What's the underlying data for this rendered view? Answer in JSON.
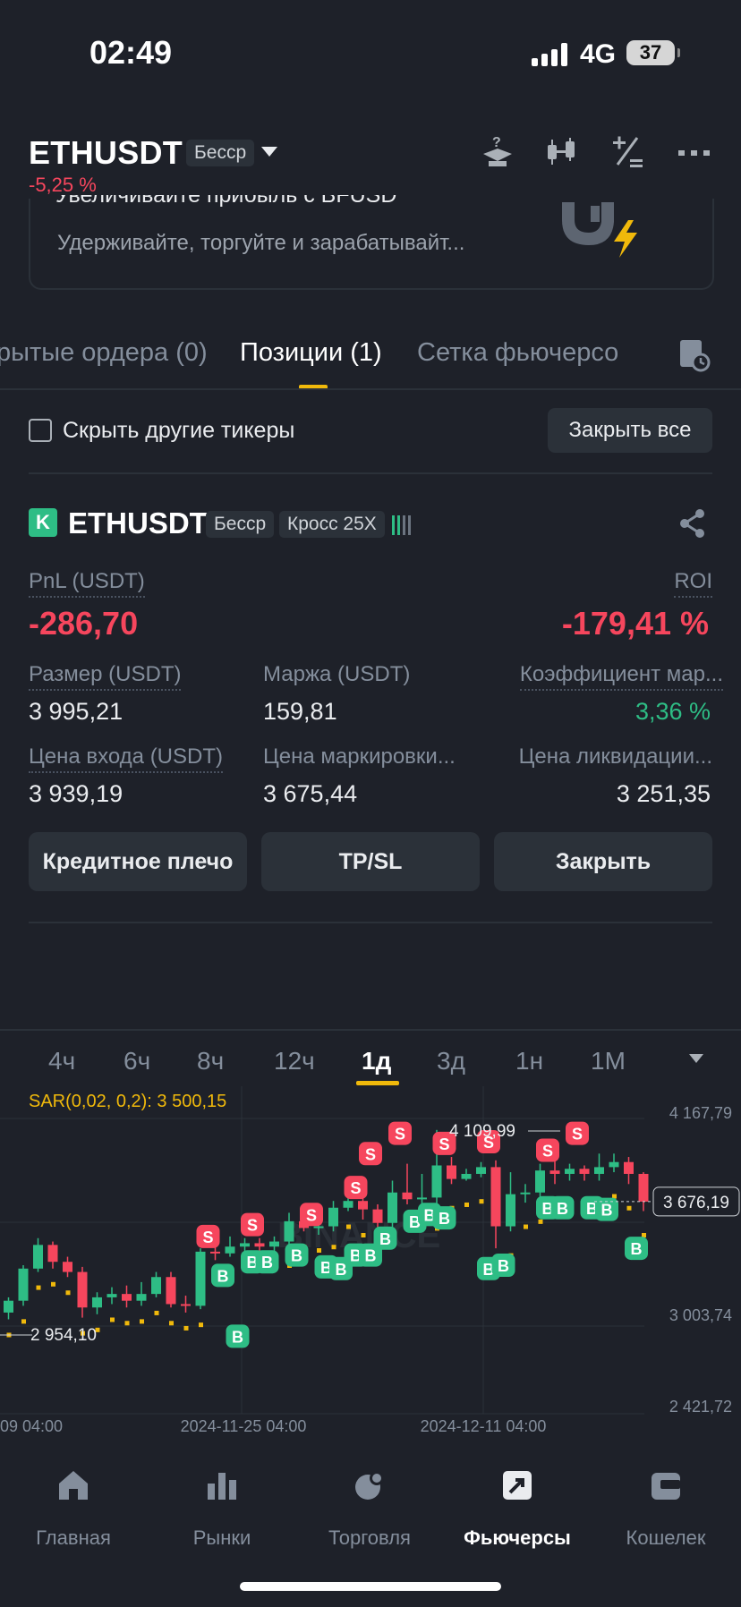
{
  "status": {
    "time": "02:49",
    "network": "4G",
    "battery": "37"
  },
  "header": {
    "symbol": "ETHUSDT",
    "contract_tag": "Бесср",
    "change": "-5,25 %"
  },
  "banner": {
    "title": "Увеличивайте прибыль с BFUSD",
    "subtitle": "Удерживайте, торгуйте и зарабатывайт..."
  },
  "tabs": [
    {
      "label": "рытые ордера (0)"
    },
    {
      "label": "Позиции (1)"
    },
    {
      "label": "Сетка фьючерсо"
    }
  ],
  "filter": {
    "hide_other_label": "Скрыть другие тикеры",
    "close_all_label": "Закрыть все"
  },
  "position": {
    "side_badge": "K",
    "symbol": "ETHUSDT",
    "tag1": "Бесср",
    "tag2": "Кросс 25X",
    "pnl_label": "PnL (USDT)",
    "pnl_value": "-286,70",
    "roi_label": "ROI",
    "roi_value": "-179,41 %",
    "size_label": "Размер (USDT)",
    "size_value": "3 995,21",
    "margin_label": "Маржа (USDT)",
    "margin_value": "159,81",
    "ratio_label": "Коэффициент мар...",
    "ratio_value": "3,36 %",
    "entry_label": "Цена входа (USDT)",
    "entry_value": "3 939,19",
    "mark_label": "Цена маркировки...",
    "mark_value": "3 675,44",
    "liq_label": "Цена ликвидации...",
    "liq_value": "3 251,35",
    "btn_leverage": "Кредитное плечо",
    "btn_tpsl": "TP/SL",
    "btn_close": "Закрыть"
  },
  "intervals": [
    "4ч",
    "6ч",
    "8ч",
    "12ч",
    "1д",
    "3д",
    "1н",
    "1М"
  ],
  "active_interval": "1д",
  "chart": {
    "sar_label": "SAR(0,02, 0,2): 3 500,15",
    "y_labels": [
      "4 167,79",
      "3 003,74",
      "2 421,72"
    ],
    "current_price": "3 676,19",
    "high_label": "4 109,99",
    "low_label": "2 954,10",
    "x_labels": [
      "09 04:00",
      "2024-11-25 04:00",
      "2024-12-11 04:00"
    ],
    "watermark": "BINANCE",
    "colors": {
      "up": "#2ebd85",
      "down": "#f6465d",
      "sar": "#f0b90b"
    }
  },
  "chart_data": {
    "type": "candlestick",
    "y_range": [
      2421.72,
      4167.79
    ],
    "y_ticks": [
      4167.79,
      3003.74,
      2421.72
    ],
    "current_price": 3676.19,
    "sar_value": 3500.15,
    "candles": [
      [
        3020,
        3090,
        2980,
        3110
      ],
      [
        3090,
        3280,
        3060,
        3300
      ],
      [
        3280,
        3420,
        3260,
        3460
      ],
      [
        3420,
        3320,
        3280,
        3440
      ],
      [
        3320,
        3260,
        3230,
        3350
      ],
      [
        3260,
        3050,
        2990,
        3290
      ],
      [
        3050,
        3110,
        3010,
        3140
      ],
      [
        3110,
        3130,
        3070,
        3170
      ],
      [
        3130,
        3090,
        3050,
        3180
      ],
      [
        3090,
        3130,
        3060,
        3200
      ],
      [
        3130,
        3230,
        3110,
        3260
      ],
      [
        3230,
        3070,
        3050,
        3260
      ],
      [
        3070,
        3060,
        3020,
        3120
      ],
      [
        3060,
        3380,
        3040,
        3400
      ],
      [
        3380,
        3370,
        3330,
        3410
      ],
      [
        3370,
        3410,
        3350,
        3470
      ],
      [
        3410,
        3430,
        3380,
        3460
      ],
      [
        3430,
        3410,
        3380,
        3460
      ],
      [
        3410,
        3440,
        3380,
        3470
      ],
      [
        3440,
        3560,
        3390,
        3610
      ],
      [
        3560,
        3520,
        3500,
        3590
      ],
      [
        3520,
        3530,
        3480,
        3560
      ],
      [
        3530,
        3640,
        3500,
        3680
      ],
      [
        3640,
        3680,
        3620,
        3720
      ],
      [
        3680,
        3630,
        3570,
        3720
      ],
      [
        3630,
        3550,
        3500,
        3660
      ],
      [
        3550,
        3730,
        3520,
        3800
      ],
      [
        3730,
        3690,
        3660,
        3900
      ],
      [
        3690,
        3700,
        3640,
        3840
      ],
      [
        3700,
        3890,
        3660,
        4100
      ],
      [
        3890,
        3810,
        3780,
        3940
      ],
      [
        3810,
        3840,
        3800,
        3870
      ],
      [
        3840,
        3880,
        3820,
        3910
      ],
      [
        3880,
        3530,
        3400,
        3920
      ],
      [
        3530,
        3720,
        3500,
        3850
      ],
      [
        3720,
        3730,
        3670,
        3780
      ],
      [
        3730,
        3860,
        3700,
        3900
      ],
      [
        3860,
        3840,
        3780,
        3920
      ],
      [
        3840,
        3870,
        3800,
        3900
      ],
      [
        3870,
        3840,
        3800,
        3890
      ],
      [
        3840,
        3880,
        3800,
        3960
      ],
      [
        3880,
        3910,
        3850,
        3960
      ],
      [
        3910,
        3840,
        3780,
        3940
      ],
      [
        3840,
        3676,
        3620,
        3850
      ]
    ],
    "x_labels": [
      "09 04:00",
      "2024-11-25 04:00",
      "2024-12-11 04:00"
    ]
  },
  "nav": [
    {
      "label": "Главная",
      "icon": "home-icon"
    },
    {
      "label": "Рынки",
      "icon": "markets-icon"
    },
    {
      "label": "Торговля",
      "icon": "trade-icon"
    },
    {
      "label": "Фьючерсы",
      "icon": "futures-icon"
    },
    {
      "label": "Кошелек",
      "icon": "wallet-icon"
    }
  ],
  "active_nav": "Фьючерсы"
}
